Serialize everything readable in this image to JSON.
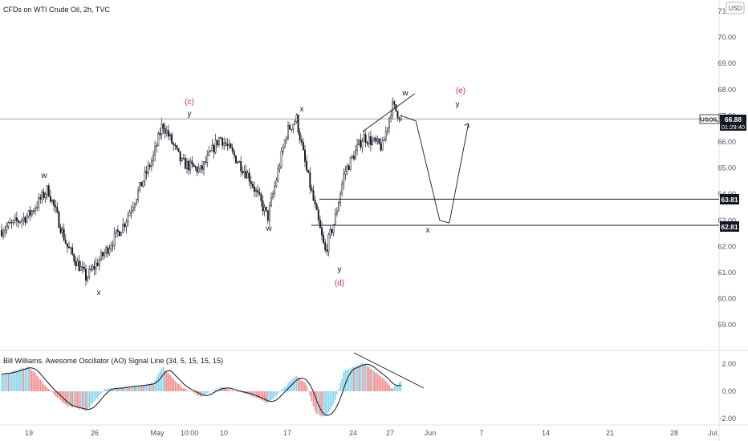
{
  "chart_title": "CFDs on WTI Crude Oil, 2h, TVC",
  "currency": "USD",
  "symbol_tag": {
    "symbol": "USOIL",
    "price": "66.88",
    "countdown": "01:29:40"
  },
  "level_tags": [
    "63.81",
    "62.81"
  ],
  "y_tick_labels": [
    "71.00",
    "70.00",
    "69.00",
    "68.00",
    "67.00",
    "66.00",
    "65.00",
    "64.00",
    "63.00",
    "62.00",
    "61.00",
    "60.00",
    "59.00"
  ],
  "x_tick_labels": [
    "19",
    "26",
    "May",
    "10:00",
    "10",
    "17",
    "24",
    "27",
    "Jun",
    "7",
    "14",
    "21",
    "28",
    "Jul"
  ],
  "indicator": {
    "title": "Bill Williams. Awesome Oscillator (AO) Signal Line (34, 5, 15, 15, 15)",
    "tick_labels": [
      "2.00",
      "0.00",
      "-2.00"
    ]
  },
  "wave_labels": [
    {
      "text": "w",
      "color": "#131722"
    },
    {
      "text": "x",
      "color": "#131722"
    },
    {
      "text": "(c)",
      "color": "#e91e63"
    },
    {
      "text": "y",
      "color": "#131722"
    },
    {
      "text": "w",
      "color": "#131722"
    },
    {
      "text": "x",
      "color": "#131722"
    },
    {
      "text": "y",
      "color": "#131722"
    },
    {
      "text": "(d)",
      "color": "#e91e63"
    },
    {
      "text": "w",
      "color": "#131722"
    },
    {
      "text": "(e)",
      "color": "#e91e63"
    },
    {
      "text": "y",
      "color": "#131722"
    },
    {
      "text": "x",
      "color": "#131722"
    }
  ],
  "colors": {
    "candles": "#131722",
    "ao_up": "#89d4e8",
    "ao_down": "#f28b8b",
    "signal_line": "#131722",
    "accent_red": "#e91e63",
    "tag_bg": "#131722"
  },
  "chart_data": {
    "type": "candlestick",
    "title": "CFDs on WTI Crude Oil, 2h, TVC",
    "ylim": [
      58.5,
      71.5
    ],
    "y_ticks": [
      71,
      70,
      69,
      68,
      67,
      66,
      65,
      64,
      63,
      62,
      61,
      60,
      59
    ],
    "price_anchors": {
      "x": [
        "Apr 16",
        "Apr 19",
        "Apr 21",
        "Apr 23",
        "Apr 25",
        "Apr 27",
        "Apr 29",
        "May 2",
        "May 3",
        "May 5",
        "May 7",
        "May 9",
        "May 12",
        "May 14",
        "May 16",
        "May 17",
        "May 18",
        "May 19",
        "May 20",
        "May 21",
        "May 22",
        "May 24",
        "May 26",
        "May 27",
        "May 28"
      ],
      "close": [
        62.6,
        63.2,
        64.2,
        62.0,
        60.8,
        61.8,
        62.9,
        65.4,
        66.7,
        65.2,
        64.9,
        66.2,
        64.7,
        63.1,
        66.4,
        66.9,
        65.0,
        63.4,
        61.8,
        63.0,
        64.8,
        66.2,
        65.8,
        67.4,
        66.9
      ]
    },
    "horizontal_levels": [
      66.88,
      63.81,
      62.81
    ],
    "projection_path": {
      "x": [
        "May 28",
        "May 29",
        "Jun 1",
        "Jun 2",
        "Jun 4"
      ],
      "y": [
        67.0,
        66.8,
        63.0,
        62.9,
        66.7
      ]
    },
    "awesome_oscillator": {
      "ylim": [
        -2.6,
        2.8
      ],
      "y_ticks": [
        2,
        0,
        -2
      ],
      "anchors": {
        "x": [
          "Apr 16",
          "Apr 19",
          "Apr 21",
          "Apr 23",
          "Apr 25",
          "Apr 27",
          "Apr 29",
          "May 2",
          "May 3",
          "May 5",
          "May 7",
          "May 9",
          "May 12",
          "May 14",
          "May 16",
          "May 17",
          "May 18",
          "May 19",
          "May 20",
          "May 21",
          "May 22",
          "May 24",
          "May 26",
          "May 27",
          "May 28"
        ],
        "ao": [
          1.2,
          1.8,
          0.2,
          -1.1,
          -1.4,
          0.2,
          0.3,
          0.6,
          1.8,
          0.3,
          -0.4,
          0.3,
          -0.2,
          -0.9,
          0.5,
          1.1,
          0.6,
          -1.6,
          -1.9,
          -0.8,
          1.5,
          2.1,
          1.0,
          0.2,
          0.8
        ]
      }
    },
    "legend": "none",
    "grid": false
  }
}
